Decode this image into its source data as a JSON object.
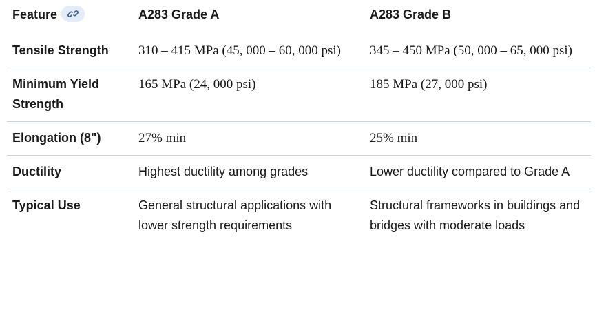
{
  "table": {
    "header": [
      "Feature",
      "A283 Grade A",
      "A283 Grade B"
    ],
    "rows": [
      [
        "Tensile Strength",
        "310 – 415 MPa (45, 000 – 60, 000 psi)",
        "345 – 450 MPa (50, 000 – 65, 000 psi)"
      ],
      [
        "Minimum Yield Strength",
        "165 MPa (24, 000 psi)",
        "185 MPa (27, 000 psi)"
      ],
      [
        "Elongation (8\")",
        "27% min",
        "25% min"
      ],
      [
        "Ductility",
        "Highest ductility among grades",
        "Lower ductility compared to Grade A"
      ],
      [
        "Typical Use",
        "General structural applications with lower strength requirements",
        "Structural frameworks in buildings and bridges with moderate loads"
      ]
    ]
  }
}
